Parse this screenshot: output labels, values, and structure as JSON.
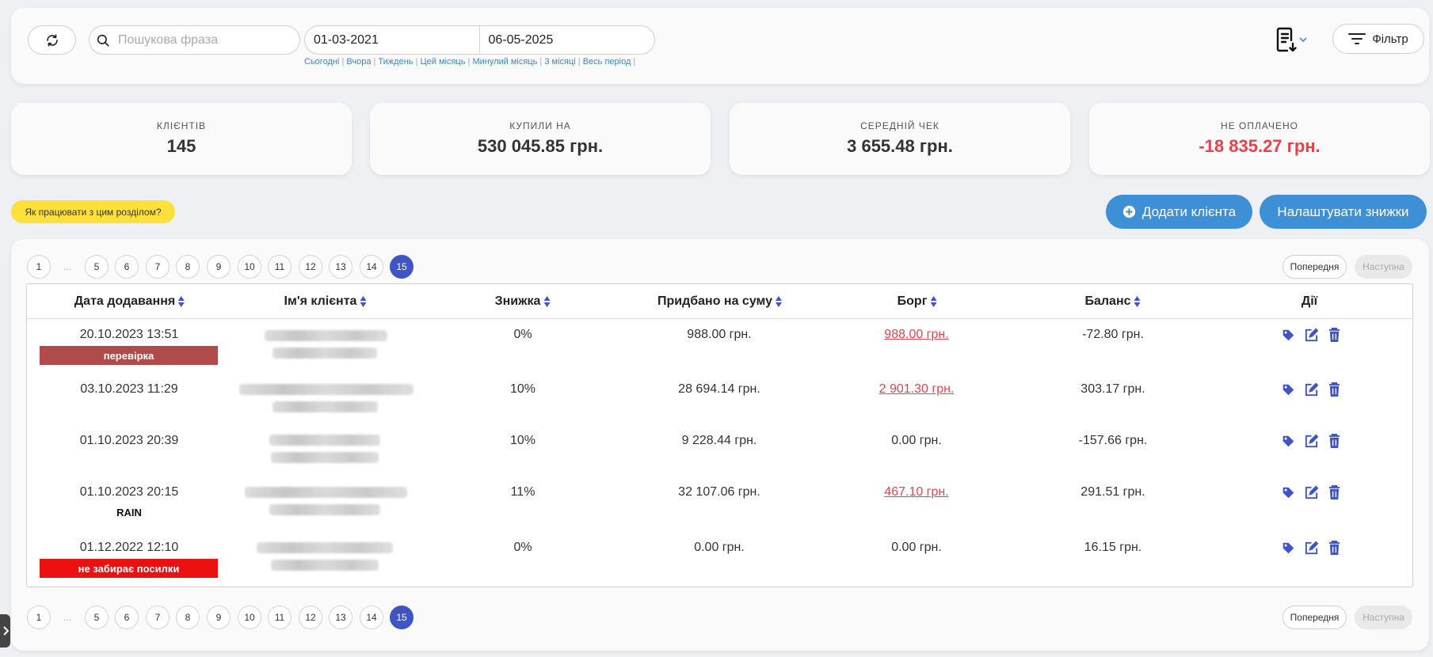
{
  "toolbar": {
    "search_placeholder": "Пошукова фраза",
    "date_from": "01-03-2021",
    "date_to": "06-05-2025",
    "quick_ranges": [
      "Сьогодні",
      "Вчора",
      "Тиждень",
      "Цей місяць",
      "Минулий місяць",
      "3 місяці",
      "Весь період"
    ],
    "filter_label": "Фільтр",
    "icons": {
      "refresh": "refresh-icon",
      "search": "search-icon",
      "export": "export-document-icon",
      "filter": "filter-lines-icon"
    }
  },
  "stats": [
    {
      "label": "КЛІЄНТІВ",
      "value": "145",
      "negative": false
    },
    {
      "label": "КУПИЛИ НА",
      "value": "530 045.85 грн.",
      "negative": false
    },
    {
      "label": "СЕРЕДНІЙ ЧЕК",
      "value": "3 655.48 грн.",
      "negative": false
    },
    {
      "label": "НЕ ОПЛАЧЕНО",
      "value": "-18 835.27 грн.",
      "negative": true
    }
  ],
  "help_label": "Як працювати з цим розділом?",
  "add_client_label": "Додати клієнта",
  "discounts_label": "Налаштувати знижки",
  "pagination": {
    "pages": [
      "1",
      "...",
      "5",
      "6",
      "7",
      "8",
      "9",
      "10",
      "11",
      "12",
      "13",
      "14",
      "15"
    ],
    "active": "15",
    "prev_label": "Попередня",
    "next_label": "Наступна"
  },
  "table": {
    "headers": [
      "Дата додавання",
      "Ім'я клієнта",
      "Знижка",
      "Придбано на суму",
      "Борг",
      "Баланс",
      "Дії"
    ],
    "rows": [
      {
        "date": "20.10.2023 13:51",
        "tag": "перевірка",
        "tag_color": "#b14a4a",
        "note": "",
        "discount": "0%",
        "purchased": "988.00 грн.",
        "debt": "988.00 грн.",
        "debt_link": true,
        "balance": "-72.80 грн."
      },
      {
        "date": "03.10.2023 11:29",
        "tag": "",
        "tag_color": "",
        "note": "",
        "discount": "10%",
        "purchased": "28 694.14 грн.",
        "debt": "2 901.30 грн.",
        "debt_link": true,
        "balance": "303.17 грн."
      },
      {
        "date": "01.10.2023 20:39",
        "tag": "",
        "tag_color": "",
        "note": "",
        "discount": "10%",
        "purchased": "9 228.44 грн.",
        "debt": "0.00 грн.",
        "debt_link": false,
        "balance": "-157.66 грн."
      },
      {
        "date": "01.10.2023 20:15",
        "tag": "",
        "tag_color": "",
        "note": "RAIN",
        "discount": "11%",
        "purchased": "32 107.06 грн.",
        "debt": "467.10 грн.",
        "debt_link": true,
        "balance": "291.51 грн."
      },
      {
        "date": "01.12.2022 12:10",
        "tag": "не забирає посилки",
        "tag_color": "#ec1010",
        "note": "",
        "discount": "0%",
        "purchased": "0.00 грн.",
        "debt": "0.00 грн.",
        "debt_link": false,
        "balance": "16.15 грн."
      }
    ],
    "row_actions": [
      "tag-icon",
      "edit-icon",
      "trash-icon"
    ]
  },
  "colors": {
    "accent": "#3f55c4",
    "button_blue": "#3d8fd6",
    "negative": "#e8414e",
    "help_yellow": "#fde03a"
  }
}
